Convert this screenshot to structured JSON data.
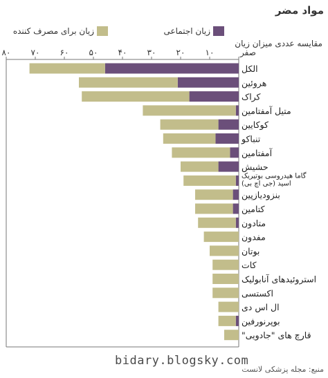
{
  "title": "مواد مضر",
  "subtitle": "مقایسه عددی میزان زیان",
  "legend": {
    "social_label": "زیان اجتماعی",
    "user_label": "زیان برای مصرف کننده",
    "social_color": "#6b4f7a",
    "user_color": "#c2bd8b"
  },
  "footer": {
    "watermark": "bidary.blogsky.com",
    "source": "منبع: مجله پزشکی لانست"
  },
  "chart_data": {
    "type": "bar",
    "orientation": "horizontal",
    "x_direction": "right-to-left",
    "xlim": [
      0,
      80
    ],
    "xticks": [
      0,
      10,
      20,
      30,
      40,
      50,
      60,
      70,
      80
    ],
    "xtick_labels": [
      "صفر",
      "۱۰",
      "۲۰",
      "۳۰",
      "۴۰",
      "۵۰",
      "۶۰",
      "۷۰",
      "۸۰"
    ],
    "grid": false,
    "categories": [
      "الکل",
      "هروئین",
      "کراک",
      "متیل آمفتامین",
      "کوکایین",
      "تنباکو",
      "آمفتامین",
      "حشیش",
      "گاما هیدروسی بوتیریک اسید (جی اچ بی)",
      "بنزودیازپین",
      "کتامین",
      "متادون",
      "مفدون",
      "بوتان",
      "کات",
      "استروئیدهای آنابولیک",
      "اکستسی",
      "ال اس دی",
      "بوپرنورفین",
      "قارچ های \"جادویی\""
    ],
    "series": [
      {
        "name": "زیان اجتماعی",
        "color": "#6b4f7a",
        "values": [
          46,
          21,
          17,
          1,
          7,
          8,
          3,
          7,
          1,
          2,
          2,
          1,
          0,
          0,
          0,
          0,
          0,
          0,
          1,
          0
        ]
      },
      {
        "name": "زیان برای مصرف کننده",
        "color": "#c2bd8b",
        "values": [
          26,
          34,
          37,
          32,
          20,
          18,
          20,
          13,
          18,
          13,
          13,
          13,
          12,
          10,
          9,
          9,
          9,
          7,
          6,
          5
        ]
      }
    ]
  }
}
